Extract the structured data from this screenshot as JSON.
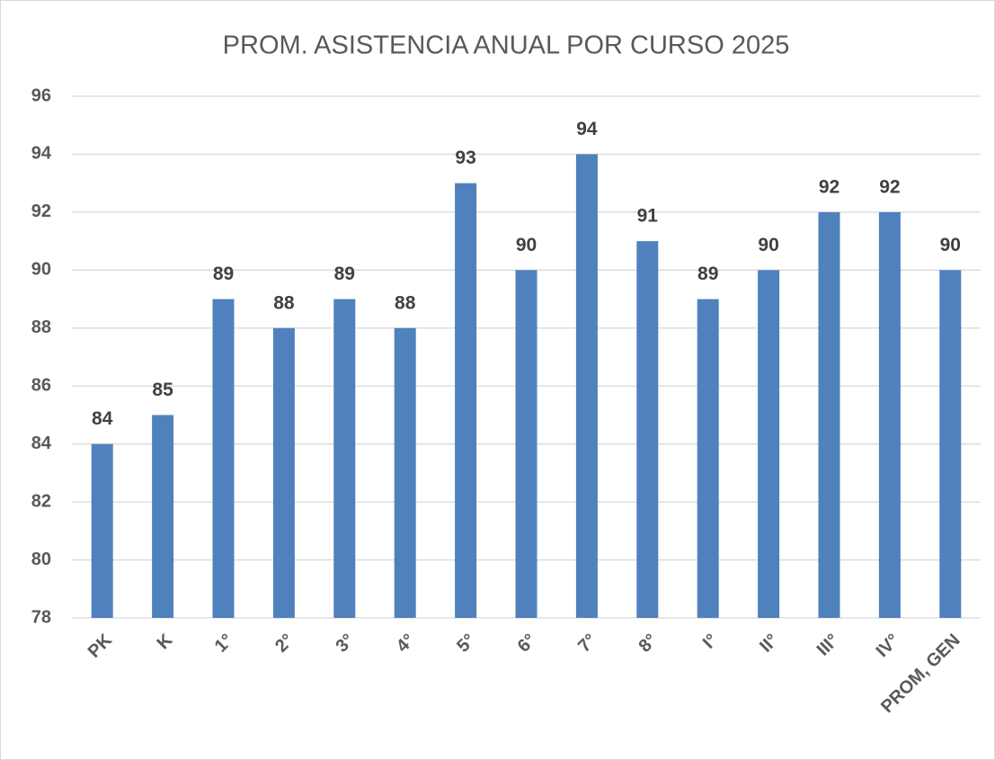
{
  "chart_data": {
    "type": "bar",
    "title": "PROM. ASISTENCIA ANUAL POR CURSO 2025",
    "categories": [
      "PK",
      "K",
      "1°",
      "2°",
      "3°",
      "4°",
      "5°",
      "6°",
      "7°",
      "8°",
      "I°",
      "II°",
      "III°",
      "IV°",
      "PROM, GEN"
    ],
    "values": [
      84,
      85,
      89,
      88,
      89,
      88,
      93,
      90,
      94,
      91,
      89,
      90,
      92,
      92,
      90
    ],
    "color": "#4f81bd",
    "ylim": [
      78,
      96
    ],
    "yticks": [
      78,
      80,
      82,
      84,
      86,
      88,
      90,
      92,
      94,
      96
    ],
    "grid": true
  }
}
